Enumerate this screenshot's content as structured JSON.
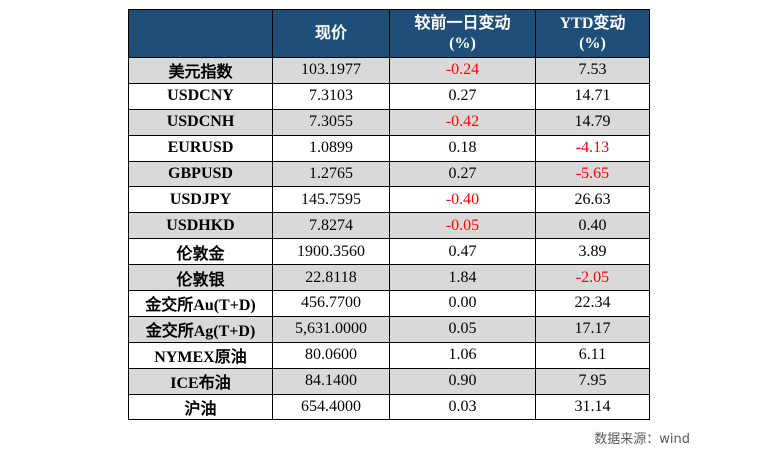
{
  "table": {
    "headers": {
      "name": "",
      "price": "现价",
      "day_change": [
        "较前一日变动",
        "(%)"
      ],
      "ytd_change": [
        "YTD变动",
        "(%)"
      ]
    },
    "rows": [
      {
        "name": "美元指数",
        "price": "103.1977",
        "day": "-0.24",
        "ytd": "7.53",
        "day_neg": true,
        "ytd_neg": false
      },
      {
        "name": "USDCNY",
        "price": "7.3103",
        "day": "0.27",
        "ytd": "14.71",
        "day_neg": false,
        "ytd_neg": false
      },
      {
        "name": "USDCNH",
        "price": "7.3055",
        "day": "-0.42",
        "ytd": "14.79",
        "day_neg": true,
        "ytd_neg": false
      },
      {
        "name": "EURUSD",
        "price": "1.0899",
        "day": "0.18",
        "ytd": "-4.13",
        "day_neg": false,
        "ytd_neg": true
      },
      {
        "name": "GBPUSD",
        "price": "1.2765",
        "day": "0.27",
        "ytd": "-5.65",
        "day_neg": false,
        "ytd_neg": true
      },
      {
        "name": "USDJPY",
        "price": "145.7595",
        "day": "-0.40",
        "ytd": "26.63",
        "day_neg": true,
        "ytd_neg": false
      },
      {
        "name": "USDHKD",
        "price": "7.8274",
        "day": "-0.05",
        "ytd": "0.40",
        "day_neg": true,
        "ytd_neg": false
      },
      {
        "name": "伦敦金",
        "price": "1900.3560",
        "day": "0.47",
        "ytd": "3.89",
        "day_neg": false,
        "ytd_neg": false
      },
      {
        "name": "伦敦银",
        "price": "22.8118",
        "day": "1.84",
        "ytd": "-2.05",
        "day_neg": false,
        "ytd_neg": true
      },
      {
        "name": "金交所Au(T+D)",
        "price": "456.7700",
        "day": "0.00",
        "ytd": "22.34",
        "day_neg": false,
        "ytd_neg": false
      },
      {
        "name": "金交所Ag(T+D)",
        "price": "5,631.0000",
        "day": "0.05",
        "ytd": "17.17",
        "day_neg": false,
        "ytd_neg": false
      },
      {
        "name": "NYMEX原油",
        "price": "80.0600",
        "day": "1.06",
        "ytd": "6.11",
        "day_neg": false,
        "ytd_neg": false
      },
      {
        "name": "ICE布油",
        "price": "84.1400",
        "day": "0.90",
        "ytd": "7.95",
        "day_neg": false,
        "ytd_neg": false
      },
      {
        "name": "沪油",
        "price": "654.4000",
        "day": "0.03",
        "ytd": "31.14",
        "day_neg": false,
        "ytd_neg": false
      }
    ]
  },
  "source_note": "数据来源：wind",
  "colors": {
    "header_bg": "#1f4e79",
    "header_text": "#ffffff",
    "shaded_row_bg": "#d9d9d9",
    "negative": "#ff0000",
    "positive": "#000000"
  }
}
